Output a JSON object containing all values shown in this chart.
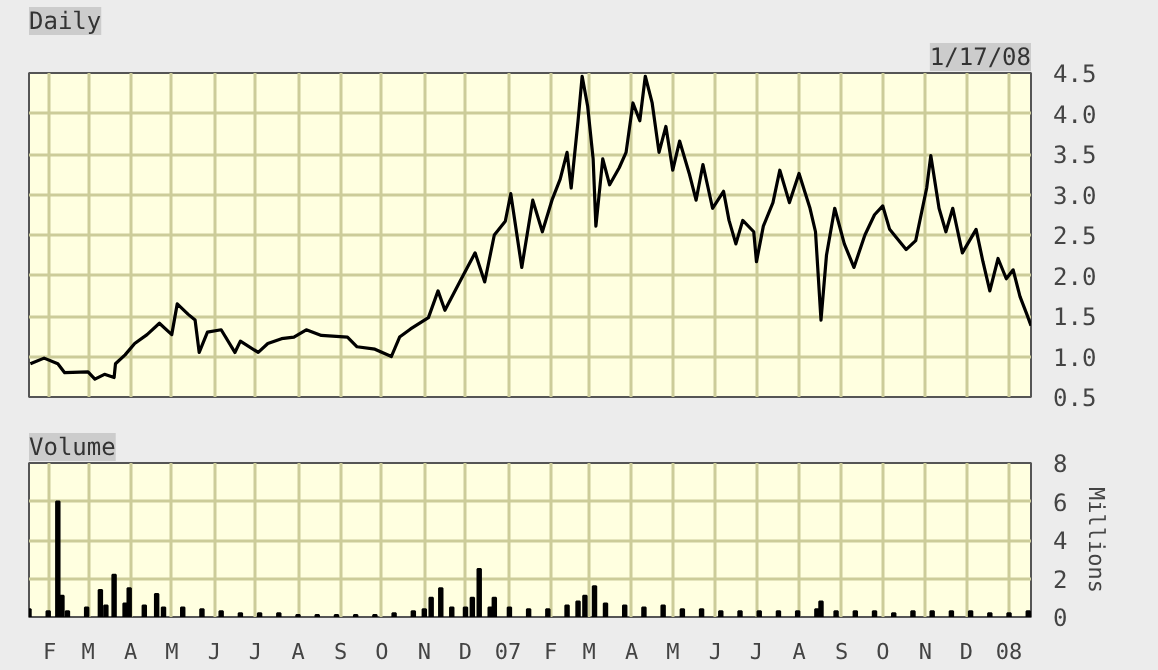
{
  "chart_data": [
    {
      "type": "line",
      "title": "Daily",
      "grid": true,
      "tick_labels": "y",
      "annotations": [
        "1/17/08"
      ],
      "xlim": [
        "2006-01-17",
        "2008-01-17"
      ],
      "ylim": [
        0.5,
        4.5
      ],
      "yticks": [
        0.5,
        {
          "value": 1,
          "label": "1.0"
        },
        1.5,
        {
          "value": 2,
          "label": "2.0"
        },
        2.5,
        {
          "value": 3,
          "label": "3.0"
        },
        3.5,
        {
          "value": 4,
          "label": "4.0"
        },
        4.5
      ],
      "xticks": [
        {
          "value": "2006-02-01",
          "label": null
        },
        {
          "value": "2006-03-01",
          "label": null
        },
        {
          "value": "2006-04-01",
          "label": null
        },
        {
          "value": "2006-05-01",
          "label": null
        },
        {
          "value": "2006-06-01",
          "label": null
        },
        {
          "value": "2006-07-01",
          "label": null
        },
        {
          "value": "2006-08-01",
          "label": null
        },
        {
          "value": "2006-09-01",
          "label": null
        },
        {
          "value": "2006-10-01",
          "label": null
        },
        {
          "value": "2006-11-01",
          "label": null
        },
        {
          "value": "2006-12-01",
          "label": null
        },
        {
          "value": "2007-01-01",
          "label": null
        },
        {
          "value": "2007-02-01",
          "label": null
        },
        {
          "value": "2007-03-01",
          "label": null
        },
        {
          "value": "2007-04-01",
          "label": null
        },
        {
          "value": "2007-05-01",
          "label": null
        },
        {
          "value": "2007-06-01",
          "label": null
        },
        {
          "value": "2007-07-01",
          "label": null
        },
        {
          "value": "2007-08-01",
          "label": null
        },
        {
          "value": "2007-09-01",
          "label": null
        },
        {
          "value": "2007-10-01",
          "label": null
        },
        {
          "value": "2007-11-01",
          "label": null
        },
        {
          "value": "2007-12-01",
          "label": null
        },
        {
          "value": "2008-01-01",
          "label": null
        }
      ],
      "series": [
        {
          "color": "#000000",
          "x": [
            "2006-01-18",
            "2006-01-28",
            "2006-02-07",
            "2006-02-12",
            "2006-03-01",
            "2006-03-06",
            "2006-03-13",
            "2006-03-20",
            "2006-03-21",
            "2006-03-28",
            "2006-04-04",
            "2006-04-13",
            "2006-04-22",
            "2006-05-01",
            "2006-05-05",
            "2006-05-13",
            "2006-05-18",
            "2006-05-21",
            "2006-05-27",
            "2006-06-06",
            "2006-06-16",
            "2006-06-20",
            "2006-07-03",
            "2006-07-10",
            "2006-07-20",
            "2006-07-29",
            "2006-08-07",
            "2006-08-18",
            "2006-09-06",
            "2006-09-13",
            "2006-09-26",
            "2006-10-08",
            "2006-10-14",
            "2006-10-22",
            "2006-11-04",
            "2006-11-11",
            "2006-11-16",
            "2006-11-28",
            "2006-12-08",
            "2006-12-15",
            "2006-12-22",
            "2006-12-30",
            "2007-01-03",
            "2007-01-11",
            "2007-01-19",
            "2007-01-26",
            "2007-02-02",
            "2007-02-08",
            "2007-02-13",
            "2007-02-16",
            "2007-02-21",
            "2007-02-24",
            "2007-02-28",
            "2007-03-04",
            "2007-03-06",
            "2007-03-11",
            "2007-03-16",
            "2007-03-23",
            "2007-03-28",
            "2007-04-02",
            "2007-04-07",
            "2007-04-11",
            "2007-04-16",
            "2007-04-21",
            "2007-04-26",
            "2007-05-01",
            "2007-05-06",
            "2007-05-13",
            "2007-05-18",
            "2007-05-23",
            "2007-05-30",
            "2007-06-07",
            "2007-06-11",
            "2007-06-16",
            "2007-06-21",
            "2007-06-29",
            "2007-07-01",
            "2007-07-06",
            "2007-07-13",
            "2007-07-18",
            "2007-07-25",
            "2007-08-01",
            "2007-08-09",
            "2007-08-13",
            "2007-08-17",
            "2007-08-21",
            "2007-08-27",
            "2007-09-03",
            "2007-09-10",
            "2007-09-18",
            "2007-09-25",
            "2007-10-01",
            "2007-10-06",
            "2007-10-18",
            "2007-10-25",
            "2007-11-02",
            "2007-11-05",
            "2007-11-11",
            "2007-11-16",
            "2007-11-21",
            "2007-11-28",
            "2007-12-08",
            "2007-12-13",
            "2007-12-18",
            "2007-12-24",
            "2007-12-30",
            "2008-01-04",
            "2008-01-09",
            "2008-01-14",
            "2008-01-17"
          ],
          "values": [
            0.91,
            0.98,
            0.91,
            0.8,
            0.81,
            0.72,
            0.78,
            0.74,
            0.91,
            1.02,
            1.16,
            1.27,
            1.41,
            1.27,
            1.65,
            1.52,
            1.45,
            1.05,
            1.3,
            1.33,
            1.05,
            1.19,
            1.05,
            1.16,
            1.22,
            1.24,
            1.33,
            1.26,
            1.24,
            1.12,
            1.09,
            1.0,
            1.24,
            1.34,
            1.48,
            1.81,
            1.57,
            1.96,
            2.28,
            1.92,
            2.5,
            2.67,
            3.01,
            2.1,
            2.93,
            2.54,
            2.93,
            3.19,
            3.52,
            3.08,
            3.91,
            4.46,
            4.09,
            3.44,
            2.61,
            3.44,
            3.12,
            3.33,
            3.52,
            4.13,
            3.91,
            4.46,
            4.13,
            3.52,
            3.84,
            3.3,
            3.66,
            3.26,
            2.93,
            3.37,
            2.83,
            3.04,
            2.68,
            2.39,
            2.68,
            2.54,
            2.17,
            2.61,
            2.9,
            3.3,
            2.9,
            3.26,
            2.83,
            2.54,
            1.45,
            2.25,
            2.83,
            2.39,
            2.1,
            2.5,
            2.75,
            2.86,
            2.57,
            2.32,
            2.43,
            3.08,
            3.48,
            2.83,
            2.54,
            2.83,
            2.28,
            2.57,
            2.17,
            1.81,
            2.21,
            1.96,
            2.07,
            1.74,
            1.52,
            1.38
          ]
        }
      ]
    },
    {
      "type": "bar",
      "title": "Volume",
      "grid": true,
      "ylabel": "Millions",
      "xlim": [
        "2006-01-17",
        "2008-01-17"
      ],
      "ylim": [
        0,
        8
      ],
      "yticks": [
        0,
        2,
        4,
        6,
        8
      ],
      "xticks": [
        {
          "value": "2006-02-01",
          "label": "F"
        },
        {
          "value": "2006-03-01",
          "label": "M"
        },
        {
          "value": "2006-04-01",
          "label": "A"
        },
        {
          "value": "2006-05-01",
          "label": "M"
        },
        {
          "value": "2006-06-01",
          "label": "J"
        },
        {
          "value": "2006-07-01",
          "label": "J"
        },
        {
          "value": "2006-08-01",
          "label": "A"
        },
        {
          "value": "2006-09-01",
          "label": "S"
        },
        {
          "value": "2006-10-01",
          "label": "O"
        },
        {
          "value": "2006-11-01",
          "label": "N"
        },
        {
          "value": "2006-12-01",
          "label": "D"
        },
        {
          "value": "2007-01-01",
          "label": "07"
        },
        {
          "value": "2007-02-01",
          "label": "F"
        },
        {
          "value": "2007-03-01",
          "label": "M"
        },
        {
          "value": "2007-04-01",
          "label": "A"
        },
        {
          "value": "2007-05-01",
          "label": "M"
        },
        {
          "value": "2007-06-01",
          "label": "J"
        },
        {
          "value": "2007-07-01",
          "label": "J"
        },
        {
          "value": "2007-08-01",
          "label": "A"
        },
        {
          "value": "2007-09-01",
          "label": "S"
        },
        {
          "value": "2007-10-01",
          "label": "O"
        },
        {
          "value": "2007-11-01",
          "label": "N"
        },
        {
          "value": "2007-12-01",
          "label": "D"
        },
        {
          "value": "2008-01-01",
          "label": "08"
        }
      ],
      "series": [
        {
          "color": "#000000",
          "x": [
            "2006-01-17",
            "2006-01-31",
            "2006-02-07",
            "2006-02-10",
            "2006-02-14",
            "2006-02-28",
            "2006-03-10",
            "2006-03-14",
            "2006-03-20",
            "2006-03-28",
            "2006-03-31",
            "2006-04-11",
            "2006-04-20",
            "2006-04-25",
            "2006-05-09",
            "2006-05-23",
            "2006-06-06",
            "2006-06-20",
            "2006-07-04",
            "2006-07-18",
            "2006-08-01",
            "2006-08-15",
            "2006-08-29",
            "2006-09-12",
            "2006-09-26",
            "2006-10-10",
            "2006-10-24",
            "2006-11-01",
            "2006-11-06",
            "2006-11-13",
            "2006-11-21",
            "2006-12-01",
            "2006-12-06",
            "2006-12-11",
            "2006-12-19",
            "2006-12-22",
            "2007-01-02",
            "2007-01-16",
            "2007-01-30",
            "2007-02-13",
            "2007-02-21",
            "2007-02-26",
            "2007-03-05",
            "2007-03-13",
            "2007-03-27",
            "2007-04-10",
            "2007-04-24",
            "2007-05-08",
            "2007-05-22",
            "2007-06-05",
            "2007-06-19",
            "2007-07-03",
            "2007-07-17",
            "2007-07-31",
            "2007-08-14",
            "2007-08-17",
            "2007-08-28",
            "2007-09-11",
            "2007-09-25",
            "2007-10-09",
            "2007-10-23",
            "2007-11-06",
            "2007-11-20",
            "2007-12-04",
            "2007-12-18",
            "2008-01-01",
            "2008-01-15"
          ],
          "values": [
            0.4,
            0.3,
            6.0,
            1.1,
            0.3,
            0.5,
            1.4,
            0.6,
            2.2,
            0.7,
            1.5,
            0.6,
            1.2,
            0.5,
            0.5,
            0.4,
            0.3,
            0.2,
            0.2,
            0.2,
            0.1,
            0.1,
            0.1,
            0.1,
            0.1,
            0.2,
            0.3,
            0.4,
            1.0,
            1.5,
            0.5,
            0.5,
            1.0,
            2.5,
            0.5,
            1.0,
            0.5,
            0.4,
            0.4,
            0.6,
            0.8,
            1.1,
            1.6,
            0.7,
            0.6,
            0.5,
            0.6,
            0.4,
            0.4,
            0.3,
            0.3,
            0.3,
            0.3,
            0.3,
            0.4,
            0.8,
            0.3,
            0.3,
            0.3,
            0.2,
            0.3,
            0.3,
            0.3,
            0.3,
            0.2,
            0.2,
            0.3
          ]
        }
      ]
    }
  ]
}
